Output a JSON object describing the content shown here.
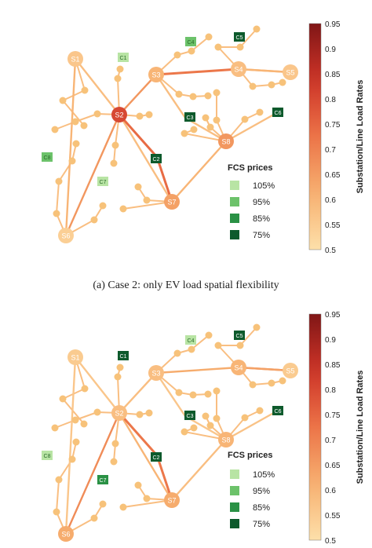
{
  "panels": [
    {
      "id": "a",
      "caption": "(a) Case 2: only EV load spatial flexibility",
      "substations": [
        {
          "label": "S1",
          "load": 0.56
        },
        {
          "label": "S2",
          "load": 0.8
        },
        {
          "label": "S3",
          "load": 0.6
        },
        {
          "label": "S4",
          "load": 0.58
        },
        {
          "label": "S5",
          "load": 0.56
        },
        {
          "label": "S6",
          "load": 0.54
        },
        {
          "label": "S7",
          "load": 0.64
        },
        {
          "label": "S8",
          "load": 0.66
        }
      ],
      "fcs": [
        {
          "label": "C1",
          "price": "105%"
        },
        {
          "label": "C2",
          "price": "75%"
        },
        {
          "label": "C3",
          "price": "75%"
        },
        {
          "label": "C4",
          "price": "95%"
        },
        {
          "label": "C5",
          "price": "75%"
        },
        {
          "label": "C6",
          "price": "75%"
        },
        {
          "label": "C7",
          "price": "105%"
        },
        {
          "label": "C8",
          "price": "95%"
        }
      ],
      "colorbar": {
        "title": "Substation/Line Load Rates",
        "ticks": [
          "0.95",
          "0.9",
          "0.85",
          "0.8",
          "0.75",
          "0.7",
          "0.65",
          "0.6",
          "0.55",
          "0.5"
        ]
      },
      "legend": {
        "title": "FCS prices",
        "items": [
          {
            "label": "105%",
            "color": "#b8e4a4"
          },
          {
            "label": "95%",
            "color": "#6cc26a"
          },
          {
            "label": "85%",
            "color": "#2a9145"
          },
          {
            "label": "75%",
            "color": "#0d5a2c"
          }
        ]
      }
    },
    {
      "id": "b",
      "caption": "",
      "substations": [
        {
          "label": "S1",
          "load": 0.55
        },
        {
          "label": "S2",
          "load": 0.58
        },
        {
          "label": "S3",
          "load": 0.58
        },
        {
          "label": "S4",
          "load": 0.6
        },
        {
          "label": "S5",
          "load": 0.55
        },
        {
          "label": "S6",
          "load": 0.62
        },
        {
          "label": "S7",
          "load": 0.62
        },
        {
          "label": "S8",
          "load": 0.6
        }
      ],
      "fcs": [
        {
          "label": "C1",
          "price": "75%"
        },
        {
          "label": "C2",
          "price": "75%"
        },
        {
          "label": "C3",
          "price": "75%"
        },
        {
          "label": "C4",
          "price": "105%"
        },
        {
          "label": "C5",
          "price": "75%"
        },
        {
          "label": "C6",
          "price": "75%"
        },
        {
          "label": "C7",
          "price": "85%"
        },
        {
          "label": "C8",
          "price": "105%"
        }
      ],
      "colorbar": {
        "title": "Substation/Line Load Rates",
        "ticks": [
          "0.95",
          "0.9",
          "0.85",
          "0.8",
          "0.75",
          "0.7",
          "0.65",
          "0.6",
          "0.55",
          "0.5"
        ]
      },
      "legend": {
        "title": "FCS prices",
        "items": [
          {
            "label": "105%",
            "color": "#b8e4a4"
          },
          {
            "label": "95%",
            "color": "#6cc26a"
          },
          {
            "label": "85%",
            "color": "#2a9145"
          },
          {
            "label": "75%",
            "color": "#0d5a2c"
          }
        ]
      }
    }
  ],
  "colors": {
    "node": "#f7c27a",
    "line_low": "#f6d29a",
    "line_high": "#8e1f1f"
  }
}
